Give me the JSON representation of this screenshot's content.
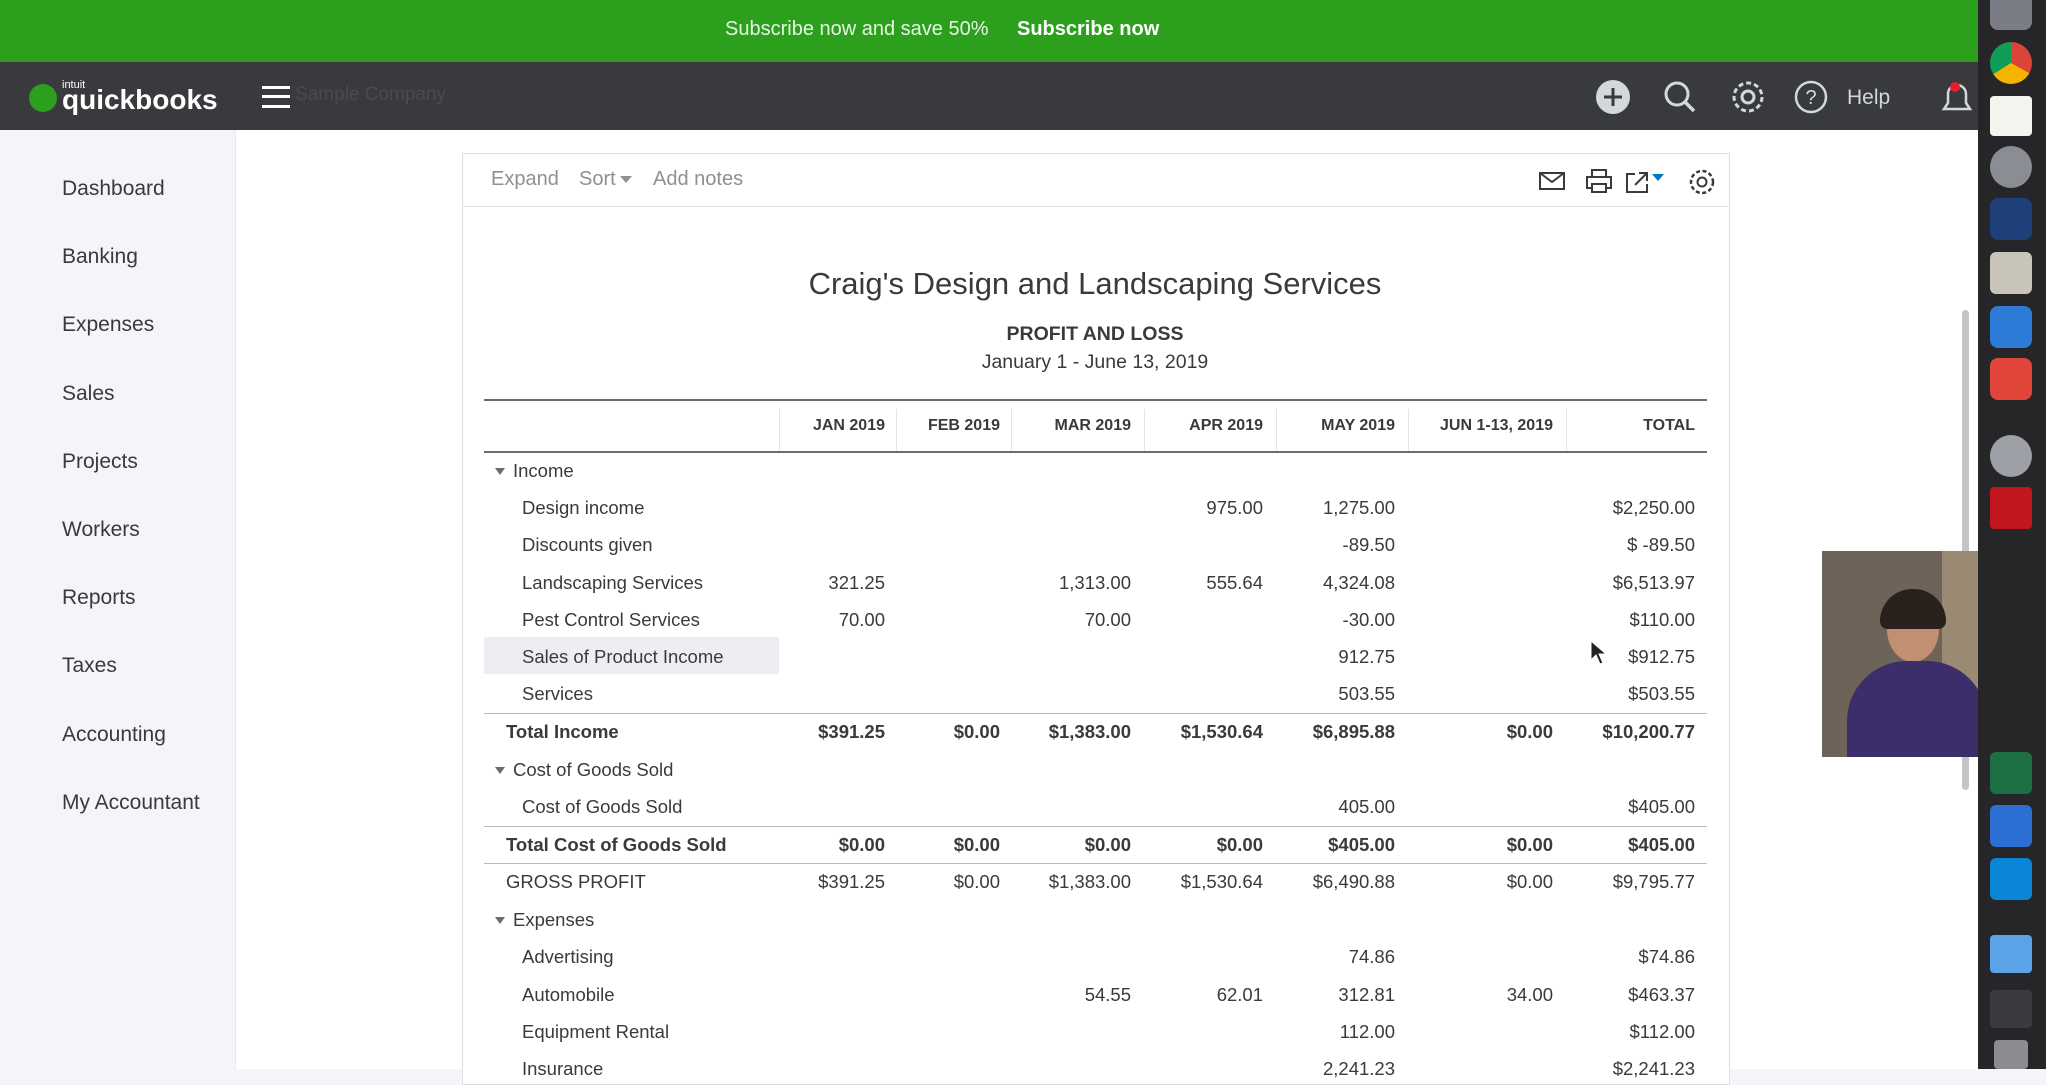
{
  "banner": {
    "text": "Subscribe now and save 50%",
    "button": "Subscribe now"
  },
  "nav": {
    "brand_small": "intuit",
    "brand": "quickbooks",
    "company": "Sample Company",
    "help": "Help"
  },
  "sidebar": [
    "Dashboard",
    "Banking",
    "Expenses",
    "Sales",
    "Projects",
    "Workers",
    "Reports",
    "Taxes",
    "Accounting",
    "My Accountant"
  ],
  "toolbar": [
    "Expand",
    "Sort",
    "Add notes"
  ],
  "report": {
    "company": "Craig's Design and Landscaping Services",
    "title": "PROFIT AND LOSS",
    "period": "January 1 - June 13, 2019",
    "columns": [
      "JAN 2019",
      "FEB 2019",
      "MAR 2019",
      "APR 2019",
      "MAY 2019",
      "JUN 1-13, 2019",
      "TOTAL"
    ],
    "sections": [
      {
        "title": "Income",
        "rows": [
          [
            "Design income",
            null,
            null,
            null,
            "975.00",
            "1,275.00",
            null,
            "$2,250.00"
          ],
          [
            "Discounts given",
            null,
            null,
            null,
            null,
            "-89.50",
            null,
            "$ -89.50"
          ],
          [
            "Landscaping Services",
            "321.25",
            null,
            "1,313.00",
            "555.64",
            "4,324.08",
            null,
            "$6,513.97"
          ],
          [
            "Pest Control Services",
            "70.00",
            null,
            "70.00",
            null,
            "-30.00",
            null,
            "$110.00"
          ],
          [
            "Sales of Product Income",
            null,
            null,
            null,
            null,
            "912.75",
            null,
            "$912.75"
          ],
          [
            "Services",
            null,
            null,
            null,
            null,
            "503.55",
            null,
            "$503.55"
          ]
        ],
        "total": [
          "Total Income",
          "$391.25",
          "$0.00",
          "$1,383.00",
          "$1,530.64",
          "$6,895.88",
          "$0.00",
          "$10,200.77"
        ]
      },
      {
        "title": "Cost of Goods Sold",
        "rows": [
          [
            "Cost of Goods Sold",
            null,
            null,
            null,
            null,
            "405.00",
            null,
            "$405.00"
          ]
        ],
        "total": [
          "Total Cost of Goods Sold",
          "$0.00",
          "$0.00",
          "$0.00",
          "$0.00",
          "$405.00",
          "$0.00",
          "$405.00"
        ]
      },
      {
        "title": "Expenses",
        "rows": [
          [
            "Advertising",
            null,
            null,
            null,
            null,
            "74.86",
            null,
            "$74.86"
          ],
          [
            "Automobile",
            null,
            null,
            "54.55",
            "62.01",
            "312.81",
            "34.00",
            "$463.37"
          ],
          [
            "Equipment Rental",
            null,
            null,
            null,
            null,
            "112.00",
            null,
            "$112.00"
          ],
          [
            "Insurance",
            null,
            null,
            null,
            null,
            "2,241.23",
            null,
            "$2,241.23"
          ]
        ]
      }
    ],
    "gross_profit": [
      "GROSS PROFIT",
      "$391.25",
      "$0.00",
      "$1,383.00",
      "$1,530.64",
      "$6,490.88",
      "$0.00",
      "$9,795.77"
    ]
  }
}
